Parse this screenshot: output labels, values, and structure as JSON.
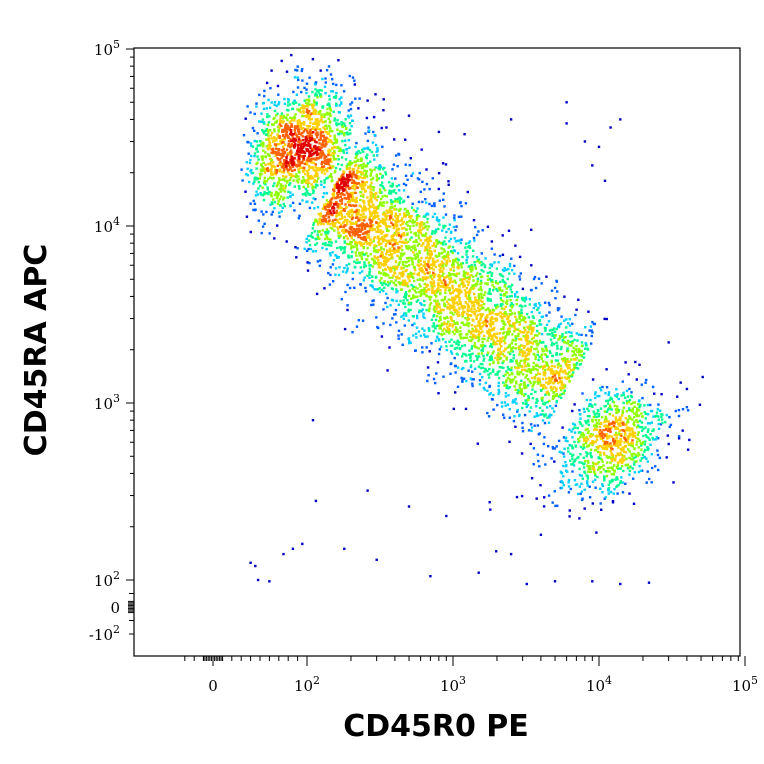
{
  "chart_data": {
    "type": "scatter",
    "style": "flow-cytometry pseudocolor density dot plot",
    "xlabel": "CD45R0 PE",
    "ylabel": "CD45RA APC",
    "x_scale": "biexponential (log above ~100)",
    "y_scale": "biexponential (log above ~100)",
    "xlim": [
      -40,
      110000
    ],
    "ylim": [
      -130,
      110000
    ],
    "x_ticks": [
      {
        "base": "0",
        "exp": "",
        "value": 0
      },
      {
        "base": "10",
        "exp": "2",
        "value": 100
      },
      {
        "base": "10",
        "exp": "3",
        "value": 1000
      },
      {
        "base": "10",
        "exp": "4",
        "value": 10000
      },
      {
        "base": "10",
        "exp": "5",
        "value": 100000
      }
    ],
    "y_ticks": [
      {
        "base": "10",
        "exp": "5",
        "value": 100000
      },
      {
        "base": "10",
        "exp": "4",
        "value": 10000
      },
      {
        "base": "10",
        "exp": "3",
        "value": 1000
      },
      {
        "base": "10",
        "exp": "2",
        "value": 100
      },
      {
        "base": "0",
        "exp": "",
        "value": 0
      },
      {
        "base": "-10",
        "exp": "2",
        "value": -100
      }
    ],
    "grid": false,
    "legend": "none",
    "density_colors": [
      "#0000c8",
      "#0060ff",
      "#00d0ff",
      "#00ff90",
      "#90ff00",
      "#ffd000",
      "#ff6000",
      "#e00000"
    ],
    "populations": [
      {
        "name": "",
        "center": [
          95,
          28000
        ],
        "spread_x_decades": 0.17,
        "spread_y_decades": 0.17,
        "approx_events": 1400
      },
      {
        "name": "",
        "center": [
          12000,
          600
        ],
        "spread_x_decades": 0.2,
        "spread_y_decades": 0.15,
        "approx_events": 900
      },
      {
        "name": "",
        "from": [
          150,
          16000
        ],
        "to": [
          6000,
          1200
        ],
        "width_decades": 0.18,
        "approx_events": 3800
      }
    ],
    "sparse_events": [
      [
        45,
        120
      ],
      [
        48,
        100
      ],
      [
        60,
        95
      ],
      [
        40,
        125
      ],
      [
        75,
        140
      ],
      [
        85,
        150
      ],
      [
        95,
        160
      ],
      [
        180,
        150
      ],
      [
        300,
        130
      ],
      [
        700,
        105
      ],
      [
        1500,
        110
      ],
      [
        2500,
        140
      ],
      [
        3200,
        85
      ],
      [
        5000,
        95
      ],
      [
        110,
        800
      ],
      [
        115,
        280
      ],
      [
        260,
        320
      ],
      [
        500,
        260
      ],
      [
        900,
        230
      ],
      [
        1800,
        250
      ],
      [
        4000,
        180
      ],
      [
        9000,
        95
      ],
      [
        14000,
        85
      ],
      [
        22000,
        90
      ],
      [
        8000,
        30000
      ],
      [
        10000,
        28000
      ],
      [
        11000,
        18000
      ],
      [
        12000,
        36000
      ],
      [
        14000,
        40000
      ],
      [
        9000,
        22000
      ],
      [
        100000,
        18000
      ],
      [
        100000,
        5000
      ],
      [
        2500,
        40000
      ],
      [
        6000,
        38000
      ],
      [
        200,
        42000
      ],
      [
        350,
        36000
      ],
      [
        500,
        42000
      ],
      [
        800,
        34000
      ],
      [
        1200,
        33000
      ],
      [
        6000,
        50000
      ],
      [
        95000,
        110000
      ],
      [
        30000,
        2200
      ],
      [
        40000,
        1200
      ]
    ]
  }
}
